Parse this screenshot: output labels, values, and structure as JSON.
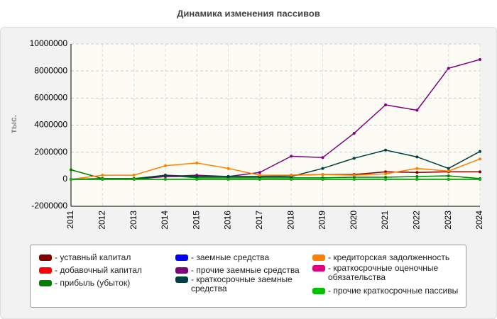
{
  "chart_data": {
    "type": "line",
    "title": "Динамика изменения пассивов",
    "y_label": "тыс.",
    "categories": [
      "2011",
      "2012",
      "2013",
      "2014",
      "2015",
      "2016",
      "2017",
      "2018",
      "2019",
      "2020",
      "2021",
      "2022",
      "2023",
      "2024"
    ],
    "ylim": [
      -2000000,
      10000000
    ],
    "yticks": [
      -2000000,
      0,
      2000000,
      4000000,
      6000000,
      8000000,
      10000000
    ],
    "grid": true,
    "series": [
      {
        "name": "- уставный капитал",
        "color": "#800000",
        "values": [
          0,
          50000,
          50000,
          200000,
          200000,
          200000,
          200000,
          300000,
          350000,
          350000,
          550000,
          500000,
          550000,
          550000
        ]
      },
      {
        "name": "- добавочный капитал",
        "color": "#ff0000",
        "values": [
          0,
          0,
          0,
          0,
          0,
          0,
          0,
          0,
          0,
          0,
          0,
          0,
          0,
          0
        ]
      },
      {
        "name": "- прибыль (убыток)",
        "color": "#008000",
        "values": [
          700000,
          50000,
          50000,
          300000,
          100000,
          100000,
          100000,
          100000,
          100000,
          150000,
          150000,
          200000,
          250000,
          50000
        ]
      },
      {
        "name": "- заемные средства",
        "color": "#0000ff",
        "values": [
          0,
          0,
          0,
          0,
          0,
          0,
          0,
          0,
          0,
          0,
          0,
          0,
          0,
          0
        ]
      },
      {
        "name": "- прочие заемные средства",
        "color": "#800080",
        "values": [
          0,
          0,
          0,
          200000,
          300000,
          200000,
          500000,
          1700000,
          1600000,
          3400000,
          5500000,
          5100000,
          8200000,
          8850000
        ]
      },
      {
        "name": "- краткосрочные заемные средства",
        "color": "#004040",
        "values": [
          0,
          0,
          0,
          300000,
          200000,
          200000,
          200000,
          200000,
          800000,
          1550000,
          2150000,
          1650000,
          800000,
          2050000
        ]
      },
      {
        "name": "- кредиторская задолженность",
        "color": "#ff8000",
        "values": [
          0,
          300000,
          300000,
          1000000,
          1200000,
          800000,
          300000,
          300000,
          350000,
          300000,
          400000,
          800000,
          600000,
          1500000
        ]
      },
      {
        "name": "- краткосрочные оценочные обязательства",
        "color": "#e0007f",
        "values": [
          0,
          0,
          0,
          0,
          0,
          0,
          0,
          0,
          0,
          0,
          0,
          0,
          0,
          0
        ]
      },
      {
        "name": "- прочие краткосрочные пассивы",
        "color": "#00c000",
        "values": [
          0,
          0,
          0,
          0,
          0,
          0,
          0,
          0,
          0,
          0,
          0,
          0,
          0,
          0
        ]
      }
    ]
  }
}
